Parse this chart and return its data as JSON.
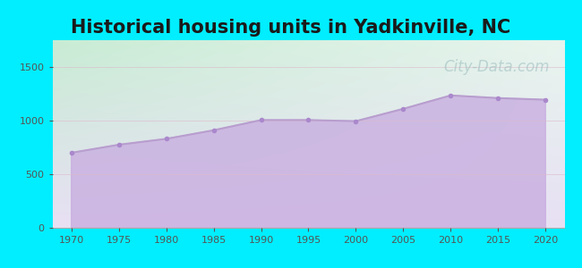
{
  "title": "Historical housing units in Yadkinville, NC",
  "title_fontsize": 15,
  "title_fontweight": "bold",
  "title_color": "#1a1a1a",
  "background_outer": "#00eeff",
  "years": [
    1970,
    1975,
    1980,
    1985,
    1990,
    1995,
    2000,
    2005,
    2010,
    2015,
    2020
  ],
  "values": [
    700,
    775,
    830,
    910,
    1005,
    1005,
    995,
    1110,
    1235,
    1210,
    1195
  ],
  "line_color": "#b89ece",
  "fill_color": "#c8aee0",
  "fill_alpha": 0.8,
  "marker_color": "#aa88cc",
  "marker_size": 4,
  "ylim": [
    0,
    1750
  ],
  "yticks": [
    0,
    500,
    1000,
    1500
  ],
  "xticks": [
    1970,
    1975,
    1980,
    1985,
    1990,
    1995,
    2000,
    2005,
    2010,
    2015,
    2020
  ],
  "grid_color": "#ddbbcc",
  "grid_alpha": 0.6,
  "watermark_text": "City-Data.com",
  "watermark_color": "#99bbbb",
  "watermark_alpha": 0.55,
  "watermark_fontsize": 12,
  "tick_label_color": "#555555",
  "tick_fontsize": 8,
  "bg_top_left": "#c8ecd4",
  "bg_top_right": "#e8f5ee",
  "bg_bottom": "#e8e0f4"
}
